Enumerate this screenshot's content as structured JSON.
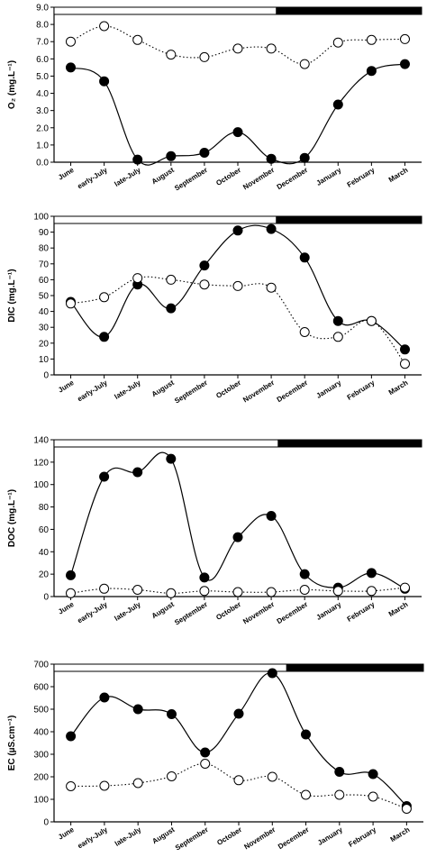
{
  "chart_data": [
    {
      "type": "line",
      "ylabel": "O₂ (mg.L⁻¹)",
      "ylim": [
        0,
        9
      ],
      "yticks": [
        "0.0",
        "1.0",
        "2.0",
        "3.0",
        "4.0",
        "5.0",
        "6.0",
        "7.0",
        "8.0",
        "9.0"
      ],
      "categories": [
        "June",
        "early-July",
        "late-July",
        "August",
        "September",
        "October",
        "November",
        "December",
        "January",
        "February",
        "March"
      ],
      "series": [
        {
          "style": "solid-filled",
          "values": [
            5.5,
            4.7,
            0.15,
            0.35,
            0.55,
            1.75,
            0.2,
            0.25,
            3.35,
            5.3,
            5.7
          ]
        },
        {
          "style": "dotted-open",
          "values": [
            7.0,
            7.9,
            7.1,
            6.25,
            6.1,
            6.6,
            6.6,
            5.7,
            6.95,
            7.1,
            7.15
          ]
        }
      ],
      "grid": false
    },
    {
      "type": "line",
      "ylabel": "DIC (mg.L⁻¹)",
      "ylim": [
        0,
        100
      ],
      "yticks": [
        "0",
        "10",
        "20",
        "30",
        "40",
        "50",
        "60",
        "70",
        "80",
        "90",
        "100"
      ],
      "categories": [
        "June",
        "early-July",
        "late-July",
        "August",
        "September",
        "October",
        "November",
        "December",
        "January",
        "February",
        "March"
      ],
      "series": [
        {
          "style": "solid-filled",
          "values": [
            46,
            24,
            57,
            42,
            69,
            91,
            92,
            74,
            34,
            34,
            16
          ]
        },
        {
          "style": "dotted-open",
          "values": [
            45,
            49,
            61,
            60,
            57,
            56,
            55,
            27,
            24,
            34,
            7
          ]
        }
      ],
      "grid": false
    },
    {
      "type": "line",
      "ylabel": "DOC (mg.L⁻¹)",
      "ylim": [
        0,
        140
      ],
      "yticks": [
        "0",
        "20",
        "40",
        "60",
        "80",
        "100",
        "120",
        "140"
      ],
      "categories": [
        "June",
        "early-July",
        "late-July",
        "August",
        "September",
        "October",
        "November",
        "December",
        "January",
        "February",
        "March"
      ],
      "series": [
        {
          "style": "solid-filled",
          "values": [
            19,
            107,
            111,
            123,
            17,
            53,
            72,
            20,
            8,
            21,
            7
          ]
        },
        {
          "style": "dotted-open",
          "values": [
            3,
            7,
            6,
            3,
            5,
            4,
            4,
            6,
            5,
            5,
            8
          ]
        }
      ],
      "grid": false
    },
    {
      "type": "line",
      "ylabel": "EC (µS.cm⁻¹)",
      "ylim": [
        0,
        700
      ],
      "yticks": [
        "0",
        "100",
        "200",
        "300",
        "400",
        "500",
        "600",
        "700"
      ],
      "categories": [
        "June",
        "early-July",
        "late-July",
        "August",
        "September",
        "October",
        "November",
        "December",
        "January",
        "February",
        "March"
      ],
      "series": [
        {
          "style": "solid-filled",
          "values": [
            380,
            552,
            500,
            478,
            308,
            480,
            660,
            388,
            222,
            212,
            70
          ]
        },
        {
          "style": "dotted-open",
          "values": [
            158,
            160,
            172,
            202,
            258,
            185,
            200,
            120,
            120,
            112,
            58
          ]
        }
      ],
      "grid": false
    }
  ],
  "colors": {
    "line": "#000000",
    "filled_marker": "#000000",
    "open_marker": "#ffffff",
    "bar_dark": "#000000",
    "bar_light": "#ffffff"
  }
}
